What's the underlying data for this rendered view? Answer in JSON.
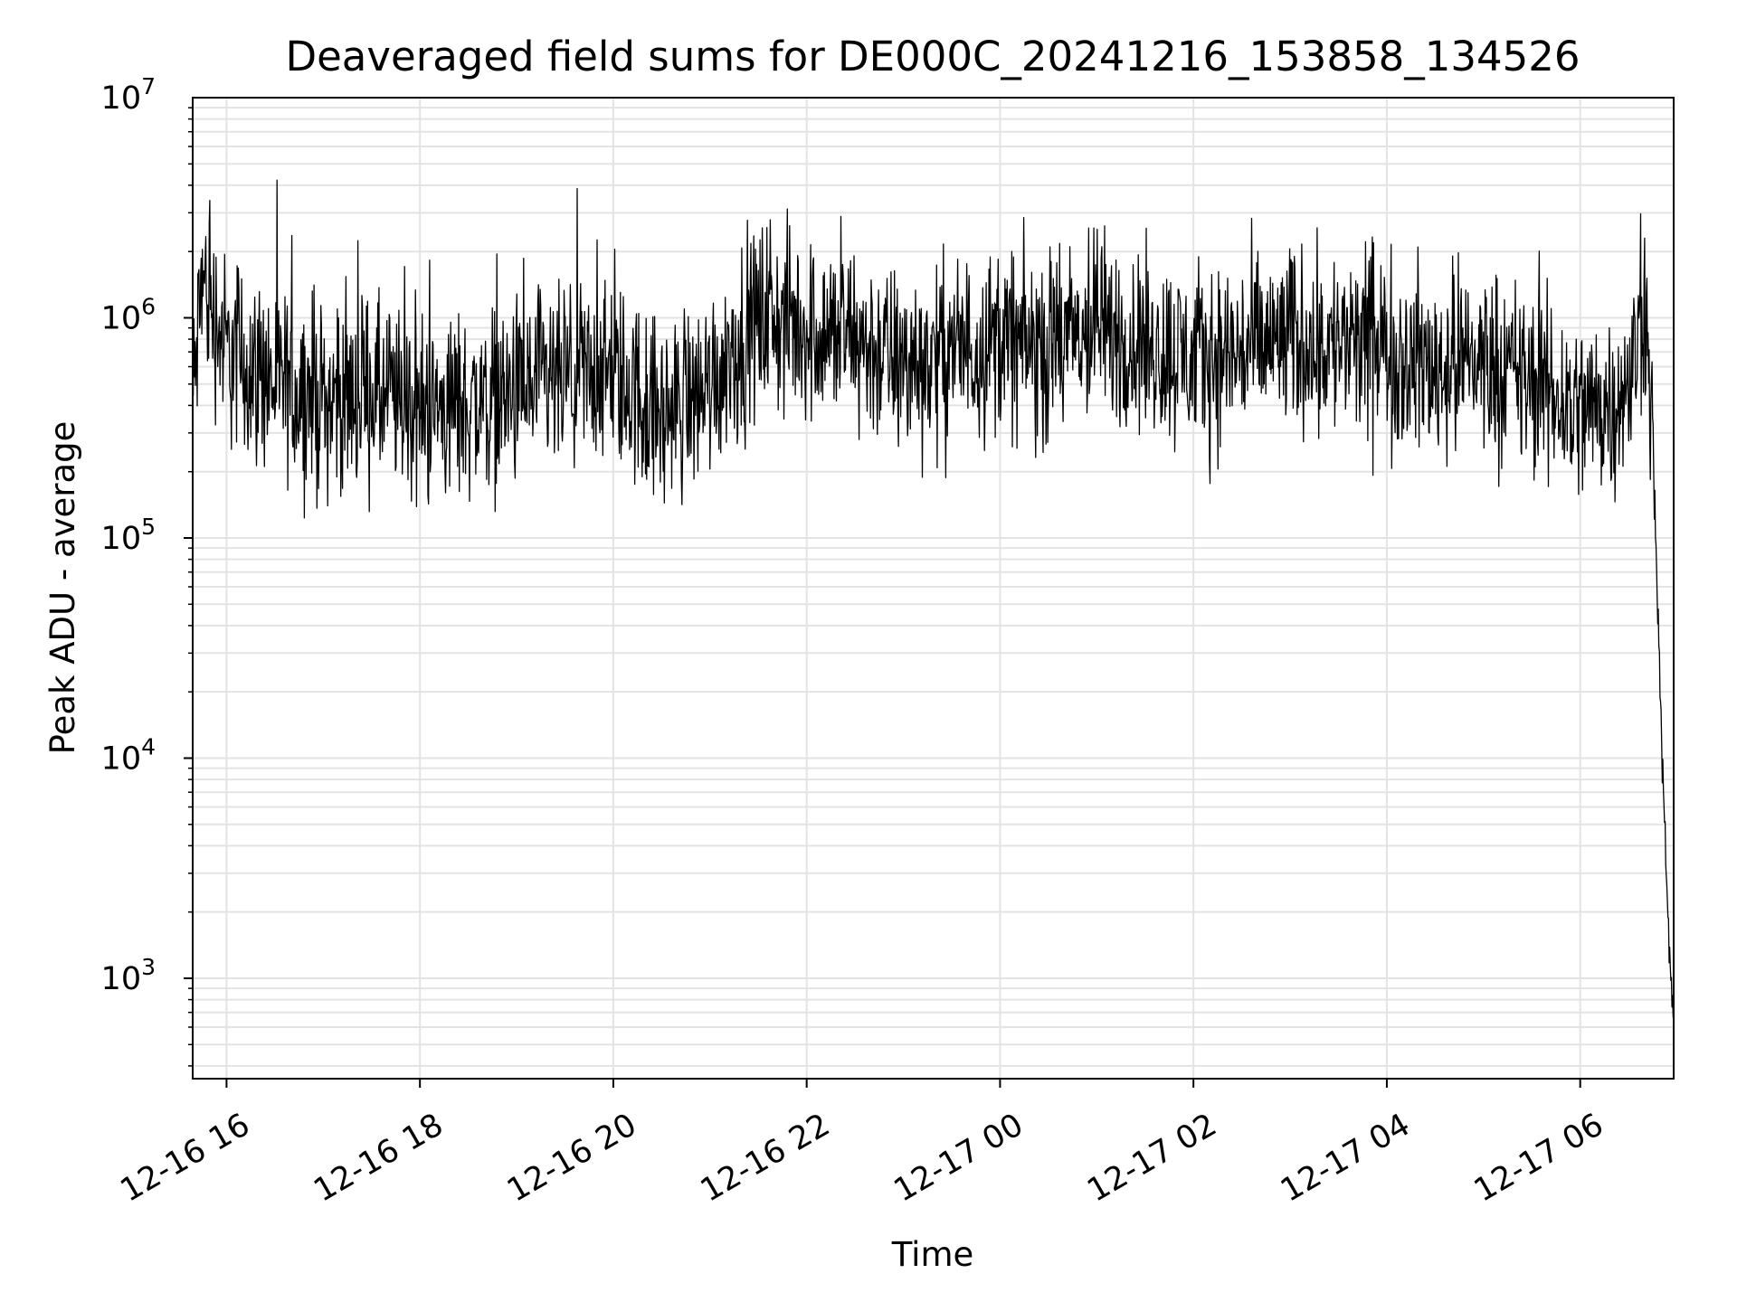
{
  "chart_data": {
    "type": "line",
    "title": "Deaveraged field sums for DE000C_20241216_153858_134526",
    "xlabel": "Time",
    "ylabel": "Peak ADU - average",
    "yscale": "log",
    "ylim": [
      350,
      10000000
    ],
    "xlim": [
      "2024-12-16 15:39",
      "2024-12-17 06:58"
    ],
    "grid": true,
    "x_ticks": [
      "2024-12-16 16:00",
      "2024-12-16 18:00",
      "2024-12-16 20:00",
      "2024-12-16 22:00",
      "2024-12-17 00:00",
      "2024-12-17 02:00",
      "2024-12-17 04:00",
      "2024-12-17 06:00"
    ],
    "x_tick_labels": [
      "12-16 16",
      "12-16 18",
      "12-16 20",
      "12-16 22",
      "12-17 00",
      "12-17 02",
      "12-17 04",
      "12-17 06"
    ],
    "y_ticks": [
      1000,
      10000,
      100000,
      1000000,
      10000000
    ],
    "y_tick_labels": [
      {
        "base": "10",
        "exp": "3"
      },
      {
        "base": "10",
        "exp": "4"
      },
      {
        "base": "10",
        "exp": "5"
      },
      {
        "base": "10",
        "exp": "6"
      },
      {
        "base": "10",
        "exp": "7"
      }
    ],
    "line_color": "#000000",
    "series": [
      {
        "x": [
          "2024-12-16 15:39",
          "2024-12-16 15:45",
          "2024-12-16 16:00",
          "2024-12-16 16:30",
          "2024-12-16 17:00",
          "2024-12-16 17:30",
          "2024-12-16 18:00",
          "2024-12-16 18:30",
          "2024-12-16 19:00",
          "2024-12-16 19:30",
          "2024-12-16 20:00",
          "2024-12-16 20:30",
          "2024-12-16 21:00",
          "2024-12-16 21:30",
          "2024-12-16 22:00",
          "2024-12-16 22:30",
          "2024-12-16 23:00",
          "2024-12-16 23:30",
          "2024-12-17 00:00",
          "2024-12-17 00:30",
          "2024-12-17 01:00",
          "2024-12-17 01:30",
          "2024-12-17 02:00",
          "2024-12-17 02:30",
          "2024-12-17 03:00",
          "2024-12-17 03:30",
          "2024-12-17 04:00",
          "2024-12-17 04:30",
          "2024-12-17 05:00",
          "2024-12-17 05:30",
          "2024-12-17 06:00",
          "2024-12-17 06:30",
          "2024-12-17 06:40",
          "2024-12-17 06:45",
          "2024-12-17 06:50",
          "2024-12-17 06:55",
          "2024-12-17 06:58"
        ],
        "y": [
          400000,
          1500000,
          700000,
          500000,
          420000,
          450000,
          380000,
          400000,
          450000,
          500000,
          550000,
          350000,
          500000,
          1000000,
          900000,
          800000,
          600000,
          700000,
          800000,
          700000,
          900000,
          750000,
          650000,
          700000,
          800000,
          750000,
          700000,
          600000,
          650000,
          500000,
          380000,
          450000,
          1200000,
          300000,
          15000,
          1500,
          600
        ]
      }
    ]
  }
}
